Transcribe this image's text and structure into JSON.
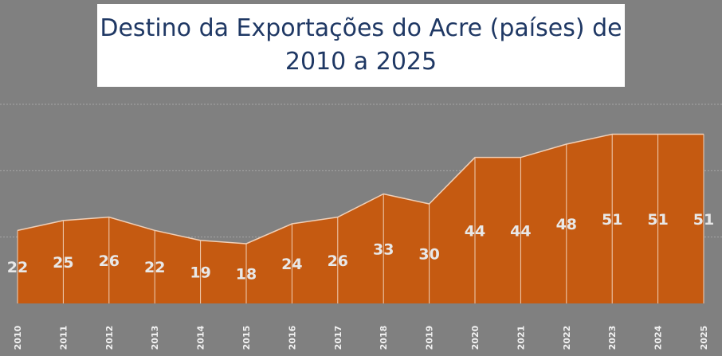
{
  "chart_data": {
    "type": "area",
    "title_line1": "Destino da Exportações do Acre (países) de",
    "title_line2": "2010 a 2025",
    "x": [
      "2010",
      "2011",
      "2012",
      "2013",
      "2014",
      "2015",
      "2016",
      "2017",
      "2018",
      "2019",
      "2020",
      "2021",
      "2022",
      "2023",
      "2024",
      "2025"
    ],
    "values": [
      22,
      25,
      26,
      22,
      19,
      18,
      24,
      26,
      33,
      30,
      44,
      44,
      48,
      51,
      51,
      51
    ],
    "ylim": [
      0,
      60
    ],
    "grid": true,
    "legend": "none",
    "colors": {
      "area_fill": "#c55a11",
      "area_edge": "#f0d0b8",
      "background": "#808080",
      "gridline": "#a6a6a6",
      "title_text": "#1f3864",
      "label_text": "#e8e8e8"
    }
  }
}
